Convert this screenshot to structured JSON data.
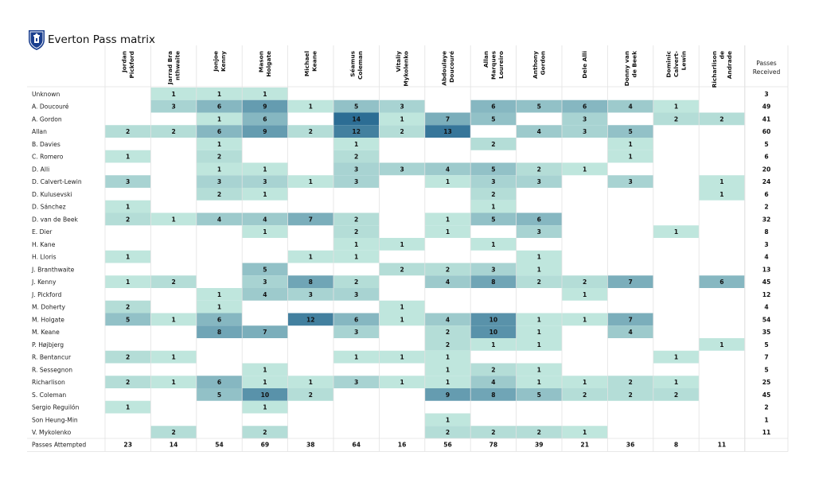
{
  "title": "Everton Pass matrix",
  "logo": "everton-crest-icon",
  "chart_data": {
    "type": "heatmap",
    "title": "Everton Pass matrix",
    "colormap": [
      "#bfe6dd",
      "#2c6d94"
    ],
    "columns": [
      "Jordan Pickford",
      "Jarrad Branthwaite",
      "Jonjoe Kenny",
      "Mason Holgate",
      "Michael Keane",
      "Séamus Coleman",
      "Vitaliy Mykolenko",
      "Abdoulaye Doucouré",
      "Allan Marques Loureiro",
      "Anthony Gordon",
      "Dele Alli",
      "Donny van de Beek",
      "Dominic Calvert-Lewin",
      "Richarlison de Andrade"
    ],
    "column_label_lines": [
      [
        "Jordan",
        "Pickford"
      ],
      [
        "Jarrad Bra",
        "nthwaite"
      ],
      [
        "Jonjoe",
        "Kenny"
      ],
      [
        "Mason",
        "Holgate"
      ],
      [
        "Michael",
        "Keane"
      ],
      [
        "Séamus",
        "Coleman"
      ],
      [
        "Vitaliy",
        "Mykolenko"
      ],
      [
        "Abdoulaye",
        "Doucouré"
      ],
      [
        "Allan",
        "Marques",
        "Loureiro"
      ],
      [
        "Anthony",
        "Gordon"
      ],
      [
        "Dele Alli"
      ],
      [
        "Donny van",
        "de Beek"
      ],
      [
        "Dominic",
        "Calvert-",
        "Lewin"
      ],
      [
        "Richarlison",
        "de",
        "Andrade"
      ]
    ],
    "received_header": [
      "Passes",
      "Received"
    ],
    "attempted_label": "Passes Attempted",
    "rows": [
      {
        "name": "Unknown",
        "values": [
          null,
          1,
          1,
          1,
          null,
          null,
          null,
          null,
          null,
          null,
          null,
          null,
          null,
          null
        ],
        "received": 3
      },
      {
        "name": "A. Doucouré",
        "values": [
          null,
          3,
          6,
          9,
          1,
          5,
          3,
          null,
          6,
          5,
          6,
          4,
          1,
          null
        ],
        "received": 49
      },
      {
        "name": "A. Gordon",
        "values": [
          null,
          null,
          1,
          6,
          null,
          14,
          1,
          7,
          5,
          null,
          3,
          null,
          2,
          2
        ],
        "received": 41
      },
      {
        "name": "Allan",
        "values": [
          2,
          2,
          6,
          9,
          2,
          12,
          2,
          13,
          null,
          4,
          3,
          5,
          null,
          null
        ],
        "received": 60
      },
      {
        "name": "B. Davies",
        "values": [
          null,
          null,
          1,
          null,
          null,
          1,
          null,
          null,
          2,
          null,
          null,
          1,
          null,
          null
        ],
        "received": 5
      },
      {
        "name": "C. Romero",
        "values": [
          1,
          null,
          2,
          null,
          null,
          2,
          null,
          null,
          null,
          null,
          null,
          1,
          null,
          null
        ],
        "received": 6
      },
      {
        "name": "D. Alli",
        "values": [
          null,
          null,
          1,
          1,
          null,
          3,
          3,
          4,
          5,
          2,
          1,
          null,
          null,
          null
        ],
        "received": 20
      },
      {
        "name": "D. Calvert-Lewin",
        "values": [
          3,
          null,
          3,
          3,
          1,
          3,
          null,
          1,
          3,
          3,
          null,
          3,
          null,
          1
        ],
        "received": 24
      },
      {
        "name": "D. Kulusevski",
        "values": [
          null,
          null,
          2,
          1,
          null,
          null,
          null,
          null,
          2,
          null,
          null,
          null,
          null,
          1
        ],
        "received": 6
      },
      {
        "name": "D. Sánchez",
        "values": [
          1,
          null,
          null,
          null,
          null,
          null,
          null,
          null,
          1,
          null,
          null,
          null,
          null,
          null
        ],
        "received": 2
      },
      {
        "name": "D. van de Beek",
        "values": [
          2,
          1,
          4,
          4,
          7,
          2,
          null,
          1,
          5,
          6,
          null,
          null,
          null,
          null
        ],
        "received": 32
      },
      {
        "name": "E. Dier",
        "values": [
          null,
          null,
          null,
          1,
          null,
          2,
          null,
          1,
          null,
          3,
          null,
          null,
          1,
          null
        ],
        "received": 8
      },
      {
        "name": "H. Kane",
        "values": [
          null,
          null,
          null,
          null,
          null,
          1,
          1,
          null,
          1,
          null,
          null,
          null,
          null,
          null
        ],
        "received": 3
      },
      {
        "name": "H. Lloris",
        "values": [
          1,
          null,
          null,
          null,
          1,
          1,
          null,
          null,
          null,
          1,
          null,
          null,
          null,
          null
        ],
        "received": 4
      },
      {
        "name": "J. Branthwaite",
        "values": [
          null,
          null,
          null,
          5,
          null,
          null,
          2,
          2,
          3,
          1,
          null,
          null,
          null,
          null
        ],
        "received": 13
      },
      {
        "name": "J. Kenny",
        "values": [
          1,
          2,
          null,
          3,
          8,
          2,
          null,
          4,
          8,
          2,
          2,
          7,
          null,
          6
        ],
        "received": 45
      },
      {
        "name": "J. Pickford",
        "values": [
          null,
          null,
          1,
          4,
          3,
          3,
          null,
          null,
          null,
          null,
          1,
          null,
          null,
          null
        ],
        "received": 12
      },
      {
        "name": "M. Doherty",
        "values": [
          2,
          null,
          1,
          null,
          null,
          null,
          1,
          null,
          null,
          null,
          null,
          null,
          null,
          null
        ],
        "received": 4
      },
      {
        "name": "M. Holgate",
        "values": [
          5,
          1,
          6,
          null,
          12,
          6,
          1,
          4,
          10,
          1,
          1,
          7,
          null,
          null
        ],
        "received": 54
      },
      {
        "name": "M. Keane",
        "values": [
          null,
          null,
          8,
          7,
          null,
          3,
          null,
          2,
          10,
          1,
          null,
          4,
          null,
          null
        ],
        "received": 35
      },
      {
        "name": "P. Højbjerg",
        "values": [
          null,
          null,
          null,
          null,
          null,
          null,
          null,
          2,
          1,
          1,
          null,
          null,
          null,
          1
        ],
        "received": 5
      },
      {
        "name": "R. Bentancur",
        "values": [
          2,
          1,
          null,
          null,
          null,
          1,
          1,
          1,
          null,
          null,
          null,
          null,
          1,
          null
        ],
        "received": 7
      },
      {
        "name": "R. Sessegnon",
        "values": [
          null,
          null,
          null,
          1,
          null,
          null,
          null,
          1,
          2,
          1,
          null,
          null,
          null,
          null
        ],
        "received": 5
      },
      {
        "name": "Richarlison",
        "values": [
          2,
          1,
          6,
          1,
          1,
          3,
          1,
          1,
          4,
          1,
          1,
          2,
          1,
          null
        ],
        "received": 25
      },
      {
        "name": "S. Coleman",
        "values": [
          null,
          null,
          5,
          10,
          2,
          null,
          null,
          9,
          8,
          5,
          2,
          2,
          2,
          null
        ],
        "received": 45
      },
      {
        "name": "Sergio Reguilón",
        "values": [
          1,
          null,
          null,
          1,
          null,
          null,
          null,
          null,
          null,
          null,
          null,
          null,
          null,
          null
        ],
        "received": 2
      },
      {
        "name": "Son Heung-Min",
        "values": [
          null,
          null,
          null,
          null,
          null,
          null,
          null,
          1,
          null,
          null,
          null,
          null,
          null,
          null
        ],
        "received": 1
      },
      {
        "name": "V. Mykolenko",
        "values": [
          null,
          2,
          null,
          2,
          null,
          null,
          null,
          2,
          2,
          2,
          1,
          null,
          null,
          null
        ],
        "received": 11
      }
    ],
    "attempted": [
      23,
      14,
      54,
      69,
      38,
      64,
      16,
      56,
      78,
      39,
      21,
      36,
      8,
      11
    ]
  }
}
